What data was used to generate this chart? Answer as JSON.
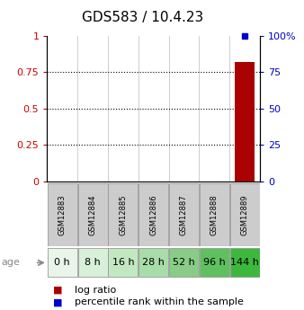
{
  "title": "GDS583 / 10.4.23",
  "samples": [
    "GSM12883",
    "GSM12884",
    "GSM12885",
    "GSM12886",
    "GSM12887",
    "GSM12888",
    "GSM12889"
  ],
  "age_labels": [
    "0 h",
    "8 h",
    "16 h",
    "28 h",
    "52 h",
    "96 h",
    "144 h"
  ],
  "age_colors": [
    "#eaf5ea",
    "#d8efd8",
    "#c2e8c2",
    "#a8dca8",
    "#88cc88",
    "#60c060",
    "#3db83d"
  ],
  "sample_bg_color": "#cccccc",
  "sample_edge_color": "#999999",
  "log_ratio_values": [
    0,
    0,
    0,
    0,
    0,
    0,
    0.82
  ],
  "percentile_rank_values": [
    null,
    null,
    null,
    null,
    null,
    null,
    1.0
  ],
  "bar_color": "#aa0000",
  "dot_color": "#0000cc",
  "left_yticks": [
    0,
    0.25,
    0.5,
    0.75,
    1
  ],
  "left_ytick_labels": [
    "0",
    "0.25",
    "0.5",
    "0.75",
    "1"
  ],
  "right_ytick_labels": [
    "0",
    "25",
    "50",
    "75",
    "100%"
  ],
  "ylim": [
    0,
    1.0
  ],
  "title_fontsize": 11,
  "tick_fontsize": 8,
  "legend_fontsize": 8,
  "sample_fontsize": 6,
  "age_fontsize": 8,
  "bg_color": "#ffffff",
  "left_tick_color": "#cc0000",
  "right_tick_color": "#0000cc"
}
